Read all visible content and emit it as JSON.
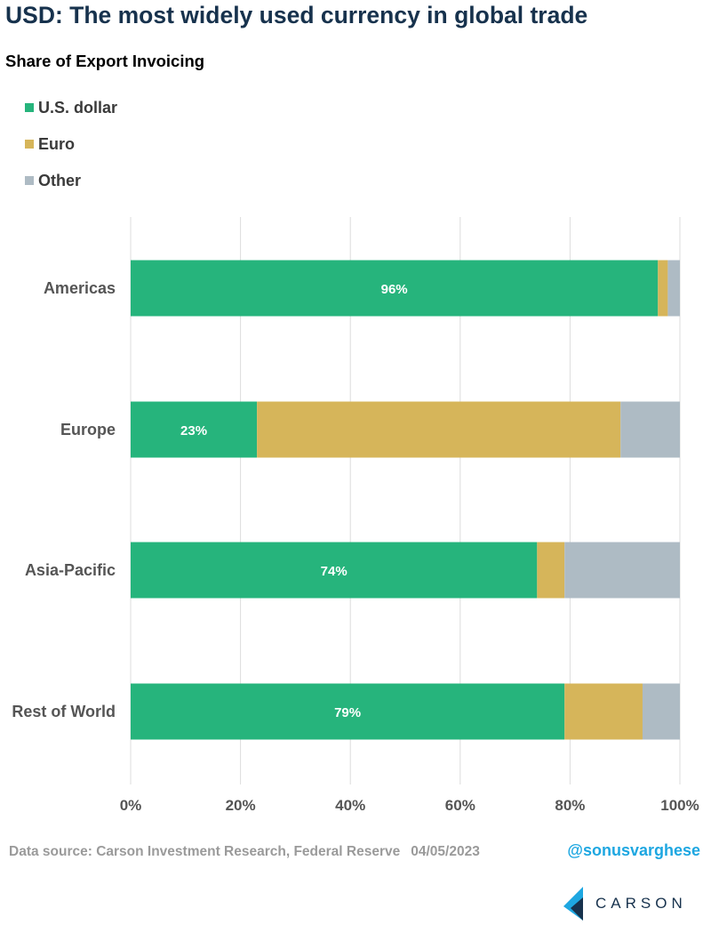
{
  "header": {
    "title": "USD: The most widely used currency in global trade",
    "subtitle": "Share of Export Invoicing"
  },
  "colors": {
    "usd": "#26b47c",
    "euro": "#d6b55a",
    "other": "#aebbc4",
    "title": "#17324d",
    "handle": "#1ea7e1"
  },
  "chart_data": {
    "type": "bar",
    "orientation": "horizontal",
    "stacked": true,
    "categories": [
      "Americas",
      "Europe",
      "Asia-Pacific",
      "Rest of World"
    ],
    "series": [
      {
        "name": "U.S. dollar",
        "values": [
          96,
          23,
          74,
          79
        ],
        "color": "#26b47c",
        "show_labels": true
      },
      {
        "name": "Euro",
        "values": [
          1.8,
          66.2,
          5,
          14.2
        ],
        "color": "#d6b55a",
        "show_labels": false
      },
      {
        "name": "Other",
        "values": [
          2.2,
          10.8,
          21,
          6.8
        ],
        "color": "#aebbc4",
        "show_labels": false
      }
    ],
    "data_labels": [
      "96%",
      "23%",
      "74%",
      "79%"
    ],
    "xlim": [
      0,
      100
    ],
    "x_ticks": [
      0,
      20,
      40,
      60,
      80,
      100
    ],
    "x_tick_labels": [
      "0%",
      "20%",
      "40%",
      "60%",
      "80%",
      "100%"
    ],
    "grid": true,
    "legend": [
      "U.S. dollar",
      "Euro",
      "Other"
    ],
    "legend_position": "top-left"
  },
  "footer": {
    "source": "Data source: Carson Investment Research, Federal Reserve",
    "date": "04/05/2023",
    "handle": "@sonusvarghese",
    "logo_text": "CARSON"
  }
}
